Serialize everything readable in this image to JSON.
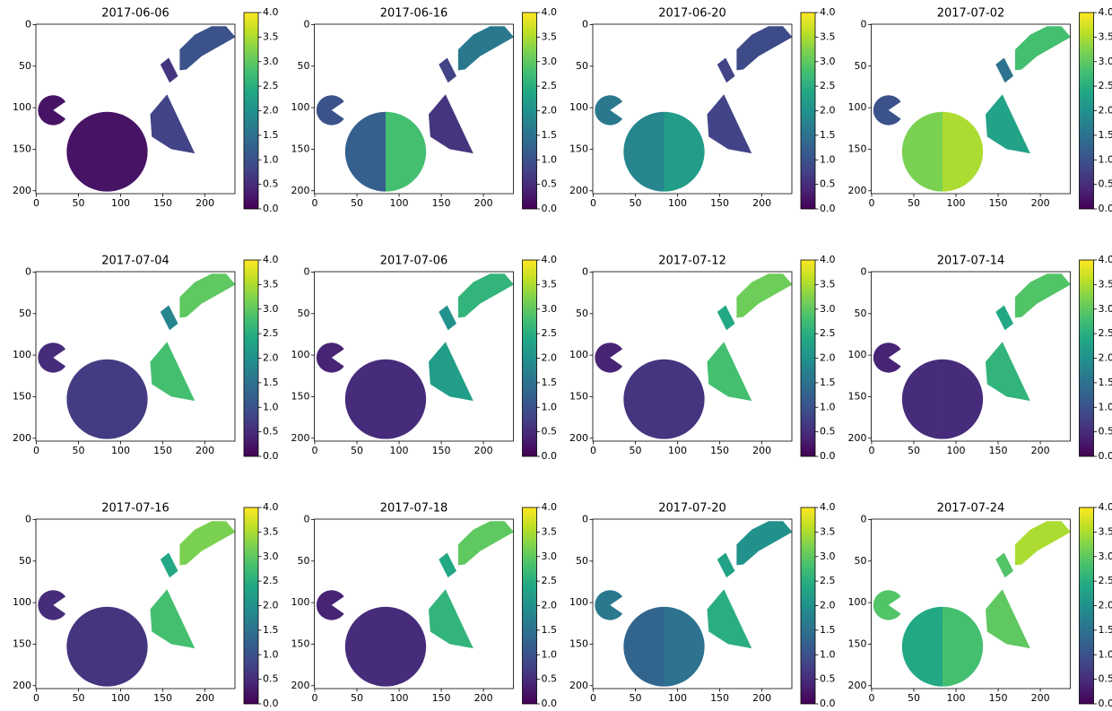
{
  "chart_data": [
    {
      "type": "image",
      "title": "2017-06-06",
      "colormap": "viridis",
      "xlim": [
        -0.5,
        235.5
      ],
      "ylim": [
        203.5,
        -0.5
      ],
      "xticks": [
        0,
        50,
        100,
        150,
        200
      ],
      "yticks": [
        0,
        50,
        100,
        150,
        200
      ],
      "clim": [
        0,
        4
      ],
      "cticks": [
        {
          "value": 0,
          "label": "0.0"
        },
        {
          "value": 0.5,
          "label": "0.5"
        },
        {
          "value": 1,
          "label": "1.0"
        },
        {
          "value": 1.5,
          "label": "1.5"
        },
        {
          "value": 2,
          "label": "2.0"
        },
        {
          "value": 2.5,
          "label": "2.5"
        },
        {
          "value": 3,
          "label": "3.0"
        },
        {
          "value": 3.5,
          "label": "3.5"
        },
        {
          "value": 4,
          "label": "4.0"
        }
      ],
      "values": [
        0.2,
        0.2,
        0.2,
        0.8,
        0.6,
        1.0
      ]
    },
    {
      "type": "image",
      "title": "2017-06-16",
      "colormap": "viridis",
      "xlim": [
        -0.5,
        235.5
      ],
      "ylim": [
        203.5,
        -0.5
      ],
      "xticks": [
        0,
        50,
        100,
        150,
        200
      ],
      "yticks": [
        0,
        50,
        100,
        150,
        200
      ],
      "clim": [
        0,
        4
      ],
      "cticks": [
        {
          "value": 0,
          "label": "0.0"
        },
        {
          "value": 0.5,
          "label": "0.5"
        },
        {
          "value": 1,
          "label": "1.0"
        },
        {
          "value": 1.5,
          "label": "1.5"
        },
        {
          "value": 2,
          "label": "2.0"
        },
        {
          "value": 2.5,
          "label": "2.5"
        },
        {
          "value": 3,
          "label": "3.0"
        },
        {
          "value": 3.5,
          "label": "3.5"
        },
        {
          "value": 4,
          "label": "4.0"
        }
      ],
      "values": [
        1.2,
        2.8,
        1.0,
        0.6,
        0.8,
        1.6
      ]
    },
    {
      "type": "image",
      "title": "2017-06-20",
      "colormap": "viridis",
      "xlim": [
        -0.5,
        235.5
      ],
      "ylim": [
        203.5,
        -0.5
      ],
      "xticks": [
        0,
        50,
        100,
        150,
        200
      ],
      "yticks": [
        0,
        50,
        100,
        150,
        200
      ],
      "clim": [
        0,
        4
      ],
      "cticks": [
        {
          "value": 0,
          "label": "0.0"
        },
        {
          "value": 0.5,
          "label": "0.5"
        },
        {
          "value": 1,
          "label": "1.0"
        },
        {
          "value": 1.5,
          "label": "1.5"
        },
        {
          "value": 2,
          "label": "2.0"
        },
        {
          "value": 2.5,
          "label": "2.5"
        },
        {
          "value": 3,
          "label": "3.0"
        },
        {
          "value": 3.5,
          "label": "3.5"
        },
        {
          "value": 4,
          "label": "4.0"
        }
      ],
      "values": [
        1.8,
        2.2,
        1.6,
        0.8,
        0.8,
        0.9
      ]
    },
    {
      "type": "image",
      "title": "2017-07-02",
      "colormap": "viridis",
      "xlim": [
        -0.5,
        235.5
      ],
      "ylim": [
        203.5,
        -0.5
      ],
      "xticks": [
        0,
        50,
        100,
        150,
        200
      ],
      "yticks": [
        0,
        50,
        100,
        150,
        200
      ],
      "clim": [
        0,
        4
      ],
      "cticks": [
        {
          "value": 0,
          "label": "0.0"
        },
        {
          "value": 0.5,
          "label": "0.5"
        },
        {
          "value": 1,
          "label": "1.0"
        },
        {
          "value": 1.5,
          "label": "1.5"
        },
        {
          "value": 2,
          "label": "2.0"
        },
        {
          "value": 2.5,
          "label": "2.5"
        },
        {
          "value": 3,
          "label": "3.0"
        },
        {
          "value": 3.5,
          "label": "3.5"
        },
        {
          "value": 4,
          "label": "4.0"
        }
      ],
      "values": [
        3.2,
        3.5,
        1.0,
        2.3,
        1.5,
        2.8
      ]
    },
    {
      "type": "image",
      "title": "2017-07-04",
      "colormap": "viridis",
      "xlim": [
        -0.5,
        235.5
      ],
      "ylim": [
        203.5,
        -0.5
      ],
      "xticks": [
        0,
        50,
        100,
        150,
        200
      ],
      "yticks": [
        0,
        50,
        100,
        150,
        200
      ],
      "clim": [
        0,
        4
      ],
      "cticks": [
        {
          "value": 0,
          "label": "0.0"
        },
        {
          "value": 0.5,
          "label": "0.5"
        },
        {
          "value": 1,
          "label": "1.0"
        },
        {
          "value": 1.5,
          "label": "1.5"
        },
        {
          "value": 2,
          "label": "2.0"
        },
        {
          "value": 2.5,
          "label": "2.5"
        },
        {
          "value": 3,
          "label": "3.0"
        },
        {
          "value": 3.5,
          "label": "3.5"
        },
        {
          "value": 4,
          "label": "4.0"
        }
      ],
      "values": [
        0.7,
        0.7,
        0.5,
        2.8,
        1.8,
        3.0
      ]
    },
    {
      "type": "image",
      "title": "2017-07-06",
      "colormap": "viridis",
      "xlim": [
        -0.5,
        235.5
      ],
      "ylim": [
        203.5,
        -0.5
      ],
      "xticks": [
        0,
        50,
        100,
        150,
        200
      ],
      "yticks": [
        0,
        50,
        100,
        150,
        200
      ],
      "clim": [
        0,
        4
      ],
      "cticks": [
        {
          "value": 0,
          "label": "0.0"
        },
        {
          "value": 0.5,
          "label": "0.5"
        },
        {
          "value": 1,
          "label": "1.0"
        },
        {
          "value": 1.5,
          "label": "1.5"
        },
        {
          "value": 2,
          "label": "2.0"
        },
        {
          "value": 2.5,
          "label": "2.5"
        },
        {
          "value": 3,
          "label": "3.0"
        },
        {
          "value": 3.5,
          "label": "3.5"
        },
        {
          "value": 4,
          "label": "4.0"
        }
      ],
      "values": [
        0.5,
        0.5,
        0.4,
        2.2,
        2.0,
        2.6
      ]
    },
    {
      "type": "image",
      "title": "2017-07-12",
      "colormap": "viridis",
      "xlim": [
        -0.5,
        235.5
      ],
      "ylim": [
        203.5,
        -0.5
      ],
      "xticks": [
        0,
        50,
        100,
        150,
        200
      ],
      "yticks": [
        0,
        50,
        100,
        150,
        200
      ],
      "clim": [
        0,
        4
      ],
      "cticks": [
        {
          "value": 0,
          "label": "0.0"
        },
        {
          "value": 0.5,
          "label": "0.5"
        },
        {
          "value": 1,
          "label": "1.0"
        },
        {
          "value": 1.5,
          "label": "1.5"
        },
        {
          "value": 2,
          "label": "2.0"
        },
        {
          "value": 2.5,
          "label": "2.5"
        },
        {
          "value": 3,
          "label": "3.0"
        },
        {
          "value": 3.5,
          "label": "3.5"
        },
        {
          "value": 4,
          "label": "4.0"
        }
      ],
      "values": [
        0.6,
        0.6,
        0.4,
        2.8,
        2.4,
        3.1
      ]
    },
    {
      "type": "image",
      "title": "2017-07-14",
      "colormap": "viridis",
      "xlim": [
        -0.5,
        235.5
      ],
      "ylim": [
        203.5,
        -0.5
      ],
      "xticks": [
        0,
        50,
        100,
        150,
        200
      ],
      "yticks": [
        0,
        50,
        100,
        150,
        200
      ],
      "clim": [
        0,
        4
      ],
      "cticks": [
        {
          "value": 0,
          "label": "0.0"
        },
        {
          "value": 0.5,
          "label": "0.5"
        },
        {
          "value": 1,
          "label": "1.0"
        },
        {
          "value": 1.5,
          "label": "1.5"
        },
        {
          "value": 2,
          "label": "2.0"
        },
        {
          "value": 2.5,
          "label": "2.5"
        },
        {
          "value": 3,
          "label": "3.0"
        },
        {
          "value": 3.5,
          "label": "3.5"
        },
        {
          "value": 4,
          "label": "4.0"
        }
      ],
      "values": [
        0.5,
        0.5,
        0.4,
        2.6,
        2.4,
        2.9
      ]
    },
    {
      "type": "image",
      "title": "2017-07-16",
      "colormap": "viridis",
      "xlim": [
        -0.5,
        235.5
      ],
      "ylim": [
        203.5,
        -0.5
      ],
      "xticks": [
        0,
        50,
        100,
        150,
        200
      ],
      "yticks": [
        0,
        50,
        100,
        150,
        200
      ],
      "clim": [
        0,
        4
      ],
      "cticks": [
        {
          "value": 0,
          "label": "0.0"
        },
        {
          "value": 0.5,
          "label": "0.5"
        },
        {
          "value": 1,
          "label": "1.0"
        },
        {
          "value": 1.5,
          "label": "1.5"
        },
        {
          "value": 2,
          "label": "2.0"
        },
        {
          "value": 2.5,
          "label": "2.5"
        },
        {
          "value": 3,
          "label": "3.0"
        },
        {
          "value": 3.5,
          "label": "3.5"
        },
        {
          "value": 4,
          "label": "4.0"
        }
      ],
      "values": [
        0.6,
        0.6,
        0.5,
        2.8,
        2.4,
        3.2
      ]
    },
    {
      "type": "image",
      "title": "2017-07-18",
      "colormap": "viridis",
      "xlim": [
        -0.5,
        235.5
      ],
      "ylim": [
        203.5,
        -0.5
      ],
      "xticks": [
        0,
        50,
        100,
        150,
        200
      ],
      "yticks": [
        0,
        50,
        100,
        150,
        200
      ],
      "clim": [
        0,
        4
      ],
      "cticks": [
        {
          "value": 0,
          "label": "0.0"
        },
        {
          "value": 0.5,
          "label": "0.5"
        },
        {
          "value": 1,
          "label": "1.0"
        },
        {
          "value": 1.5,
          "label": "1.5"
        },
        {
          "value": 2,
          "label": "2.0"
        },
        {
          "value": 2.5,
          "label": "2.5"
        },
        {
          "value": 3,
          "label": "3.0"
        },
        {
          "value": 3.5,
          "label": "3.5"
        },
        {
          "value": 4,
          "label": "4.0"
        }
      ],
      "values": [
        0.5,
        0.5,
        0.4,
        2.6,
        2.4,
        3.0
      ]
    },
    {
      "type": "image",
      "title": "2017-07-20",
      "colormap": "viridis",
      "xlim": [
        -0.5,
        235.5
      ],
      "ylim": [
        203.5,
        -0.5
      ],
      "xticks": [
        0,
        50,
        100,
        150,
        200
      ],
      "yticks": [
        0,
        50,
        100,
        150,
        200
      ],
      "clim": [
        0,
        4
      ],
      "cticks": [
        {
          "value": 0,
          "label": "0.0"
        },
        {
          "value": 0.5,
          "label": "0.5"
        },
        {
          "value": 1,
          "label": "1.0"
        },
        {
          "value": 1.5,
          "label": "1.5"
        },
        {
          "value": 2,
          "label": "2.0"
        },
        {
          "value": 2.5,
          "label": "2.5"
        },
        {
          "value": 3,
          "label": "3.0"
        },
        {
          "value": 3.5,
          "label": "3.5"
        },
        {
          "value": 4,
          "label": "4.0"
        }
      ],
      "values": [
        1.3,
        1.5,
        1.6,
        2.5,
        2.3,
        2.0
      ]
    },
    {
      "type": "image",
      "title": "2017-07-24",
      "colormap": "viridis",
      "xlim": [
        -0.5,
        235.5
      ],
      "ylim": [
        203.5,
        -0.5
      ],
      "xticks": [
        0,
        50,
        100,
        150,
        200
      ],
      "yticks": [
        0,
        50,
        100,
        150,
        200
      ],
      "clim": [
        0,
        4
      ],
      "cticks": [
        {
          "value": 0,
          "label": "0.0"
        },
        {
          "value": 0.5,
          "label": "0.5"
        },
        {
          "value": 1,
          "label": "1.0"
        },
        {
          "value": 1.5,
          "label": "1.5"
        },
        {
          "value": 2,
          "label": "2.0"
        },
        {
          "value": 2.5,
          "label": "2.5"
        },
        {
          "value": 3,
          "label": "3.0"
        },
        {
          "value": 3.5,
          "label": "3.5"
        },
        {
          "value": 4,
          "label": "4.0"
        }
      ],
      "values": [
        2.4,
        2.8,
        2.9,
        3.0,
        2.9,
        3.5
      ]
    }
  ]
}
